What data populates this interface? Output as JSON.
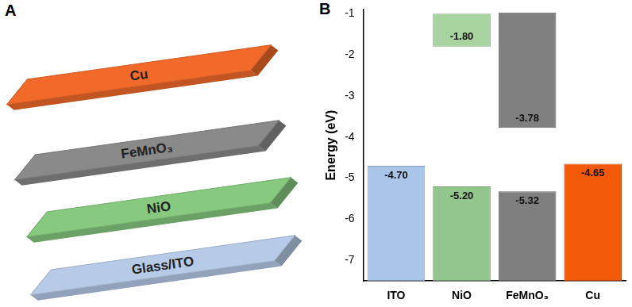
{
  "panel_a": {
    "label": "A",
    "layers": [
      {
        "label": "Cu",
        "color": "#f26a2a"
      },
      {
        "label": "FeMnO₃",
        "color": "#8a8a8a"
      },
      {
        "label": "NiO",
        "color": "#86c97f"
      },
      {
        "label": "Glass/ITO",
        "color": "#b7cbe8"
      }
    ]
  },
  "chart_data": {
    "type": "bar",
    "title": "B",
    "y_label": "Energy (eV)",
    "categories": [
      "ITO",
      "NiO",
      "FeMnO₃",
      "Cu"
    ],
    "series": [
      {
        "colors": [
          "#a9c5ea",
          "#93c68c",
          "#7f7f7f",
          "#f25a0a"
        ],
        "values": [
          [
            -7.5,
            -4.7
          ],
          [
            -7.5,
            -5.2
          ],
          [
            -7.5,
            -5.32
          ],
          [
            -7.5,
            -4.65
          ]
        ],
        "value_labels": [
          "-4.70",
          "-5.20",
          "-5.32",
          "-4.65"
        ]
      },
      {
        "colors": [
          null,
          "#a6d39e",
          "#808080",
          null
        ],
        "values": [
          null,
          [
            -1.8,
            -1.0
          ],
          [
            -3.78,
            -0.97
          ],
          null
        ],
        "value_labels": [
          null,
          "-1.80",
          "-3.78",
          null
        ]
      }
    ],
    "ylim": [
      -7.5,
      -0.9
    ],
    "yticks": [
      -7,
      -6,
      -5,
      -4,
      -3,
      -2,
      -1
    ],
    "grid": false,
    "data_labels": true
  }
}
